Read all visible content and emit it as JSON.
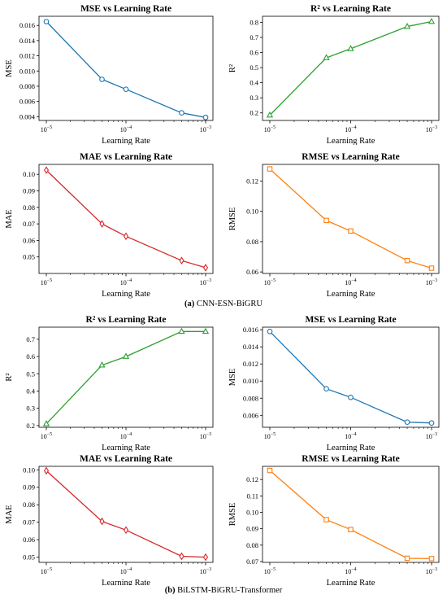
{
  "captions": [
    {
      "label": "(a)",
      "text": " CNN-ESN-BiGRU"
    },
    {
      "label": "(b)",
      "text": " BiLSTM-BiGRU-Transformer"
    }
  ],
  "colors": {
    "mse": "#1f77b4",
    "r2": "#2ca02c",
    "mae": "#d62728",
    "rmse": "#ff7f0e"
  },
  "chart_data": [
    {
      "id": "a-mse",
      "type": "line",
      "title": "MSE vs Learning Rate",
      "xlabel": "Learning Rate",
      "ylabel": "MSE",
      "xscale": "log",
      "x": [
        1e-05,
        5e-05,
        0.0001,
        0.0005,
        0.001
      ],
      "values": [
        0.0165,
        0.0089,
        0.0076,
        0.0045,
        0.0039
      ],
      "ylim": [
        0.0035,
        0.0172
      ],
      "yticks": [
        "0.016",
        "0.014",
        "0.012",
        "0.010",
        "0.008",
        "0.006",
        "0.004"
      ],
      "ytick_values": [
        0.016,
        0.014,
        0.012,
        0.01,
        0.008,
        0.006,
        0.004
      ],
      "marker": "circle",
      "color": "#1f77b4"
    },
    {
      "id": "a-r2",
      "type": "line",
      "title": "R² vs Learning Rate",
      "xlabel": "Learning Rate",
      "ylabel": "R²",
      "xscale": "log",
      "x": [
        1e-05,
        5e-05,
        0.0001,
        0.0005,
        0.001
      ],
      "values": [
        0.185,
        0.565,
        0.625,
        0.772,
        0.805
      ],
      "ylim": [
        0.15,
        0.84
      ],
      "yticks": [
        "0.8",
        "0.7",
        "0.6",
        "0.5",
        "0.4",
        "0.3",
        "0.2"
      ],
      "ytick_values": [
        0.8,
        0.7,
        0.6,
        0.5,
        0.4,
        0.3,
        0.2
      ],
      "marker": "triangle",
      "color": "#2ca02c"
    },
    {
      "id": "a-mae",
      "type": "line",
      "title": "MAE vs Learning Rate",
      "xlabel": "Learning Rate",
      "ylabel": "MAE",
      "xscale": "log",
      "x": [
        1e-05,
        5e-05,
        0.0001,
        0.0005,
        0.001
      ],
      "values": [
        0.1025,
        0.07,
        0.0625,
        0.0478,
        0.0435
      ],
      "ylim": [
        0.04,
        0.106
      ],
      "yticks": [
        "0.10",
        "0.09",
        "0.08",
        "0.07",
        "0.06",
        "0.05"
      ],
      "ytick_values": [
        0.1,
        0.09,
        0.08,
        0.07,
        0.06,
        0.05
      ],
      "marker": "diamond",
      "color": "#d62728"
    },
    {
      "id": "a-rmse",
      "type": "line",
      "title": "RMSE vs Learning Rate",
      "xlabel": "Learning Rate",
      "ylabel": "RMSE",
      "xscale": "log",
      "x": [
        1e-05,
        5e-05,
        0.0001,
        0.0005,
        0.001
      ],
      "values": [
        0.128,
        0.094,
        0.087,
        0.0675,
        0.0625
      ],
      "ylim": [
        0.059,
        0.131
      ],
      "yticks": [
        "0.12",
        "0.10",
        "0.08",
        "0.06"
      ],
      "ytick_values": [
        0.12,
        0.1,
        0.08,
        0.06
      ],
      "marker": "square",
      "color": "#ff7f0e"
    },
    {
      "id": "b-r2",
      "type": "line",
      "title": "R² vs Learning Rate",
      "xlabel": "Learning Rate",
      "ylabel": "R²",
      "xscale": "log",
      "x": [
        1e-05,
        5e-05,
        0.0001,
        0.0005,
        0.001
      ],
      "values": [
        0.21,
        0.55,
        0.6,
        0.745,
        0.745
      ],
      "ylim": [
        0.19,
        0.77
      ],
      "yticks": [
        "0.7",
        "0.6",
        "0.5",
        "0.4",
        "0.3",
        "0.2"
      ],
      "ytick_values": [
        0.7,
        0.6,
        0.5,
        0.4,
        0.3,
        0.2
      ],
      "marker": "triangle",
      "color": "#2ca02c"
    },
    {
      "id": "b-mse",
      "type": "line",
      "title": "MSE vs Learning Rate",
      "xlabel": "Learning Rate",
      "ylabel": "MSE",
      "xscale": "log",
      "x": [
        1e-05,
        5e-05,
        0.0001,
        0.0005,
        0.001
      ],
      "values": [
        0.0158,
        0.0091,
        0.0081,
        0.0052,
        0.0051
      ],
      "ylim": [
        0.0046,
        0.0163
      ],
      "yticks": [
        "0.016",
        "0.014",
        "0.012",
        "0.010",
        "0.008",
        "0.006"
      ],
      "ytick_values": [
        0.016,
        0.014,
        0.012,
        0.01,
        0.008,
        0.006
      ],
      "marker": "circle",
      "color": "#1f77b4"
    },
    {
      "id": "b-mae",
      "type": "line",
      "title": "MAE vs Learning Rate",
      "xlabel": "Learning Rate",
      "ylabel": "MAE",
      "xscale": "log",
      "x": [
        1e-05,
        5e-05,
        0.0001,
        0.0005,
        0.001
      ],
      "values": [
        0.0995,
        0.0705,
        0.0655,
        0.0505,
        0.05
      ],
      "ylim": [
        0.047,
        0.102
      ],
      "yticks": [
        "0.10",
        "0.09",
        "0.08",
        "0.07",
        "0.06",
        "0.05"
      ],
      "ytick_values": [
        0.1,
        0.09,
        0.08,
        0.07,
        0.06,
        0.05
      ],
      "marker": "diamond",
      "color": "#d62728"
    },
    {
      "id": "b-rmse",
      "type": "line",
      "title": "RMSE vs Learning Rate",
      "xlabel": "Learning Rate",
      "ylabel": "RMSE",
      "xscale": "log",
      "x": [
        1e-05,
        5e-05,
        0.0001,
        0.0005,
        0.001
      ],
      "values": [
        0.1255,
        0.0955,
        0.0895,
        0.072,
        0.0718
      ],
      "ylim": [
        0.0695,
        0.128
      ],
      "yticks": [
        "0.12",
        "0.11",
        "0.10",
        "0.09",
        "0.08",
        "0.07"
      ],
      "ytick_values": [
        0.12,
        0.11,
        0.1,
        0.09,
        0.08,
        0.07
      ],
      "marker": "square",
      "color": "#ff7f0e"
    }
  ]
}
